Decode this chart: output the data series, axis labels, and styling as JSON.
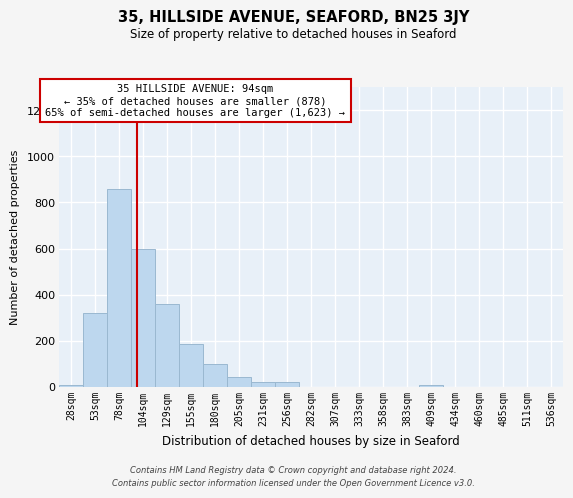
{
  "title": "35, HILLSIDE AVENUE, SEAFORD, BN25 3JY",
  "subtitle": "Size of property relative to detached houses in Seaford",
  "xlabel": "Distribution of detached houses by size in Seaford",
  "ylabel": "Number of detached properties",
  "bin_labels": [
    "28sqm",
    "53sqm",
    "78sqm",
    "104sqm",
    "129sqm",
    "155sqm",
    "180sqm",
    "205sqm",
    "231sqm",
    "256sqm",
    "282sqm",
    "307sqm",
    "333sqm",
    "358sqm",
    "383sqm",
    "409sqm",
    "434sqm",
    "460sqm",
    "485sqm",
    "511sqm",
    "536sqm"
  ],
  "bar_heights": [
    10,
    320,
    860,
    600,
    360,
    185,
    100,
    45,
    20,
    20,
    0,
    0,
    0,
    0,
    0,
    10,
    0,
    0,
    0,
    0,
    0
  ],
  "bar_color": "#bdd7ee",
  "bar_edge_color": "#9ab8d0",
  "bg_color": "#e8f0f8",
  "grid_color": "#ffffff",
  "vline_color": "#cc0000",
  "annotation_text": "35 HILLSIDE AVENUE: 94sqm\n← 35% of detached houses are smaller (878)\n65% of semi-detached houses are larger (1,623) →",
  "annotation_box_color": "#ffffff",
  "annotation_box_edge_color": "#cc0000",
  "ylim": [
    0,
    1300
  ],
  "yticks": [
    0,
    200,
    400,
    600,
    800,
    1000,
    1200
  ],
  "footer_line1": "Contains HM Land Registry data © Crown copyright and database right 2024.",
  "footer_line2": "Contains public sector information licensed under the Open Government Licence v3.0."
}
